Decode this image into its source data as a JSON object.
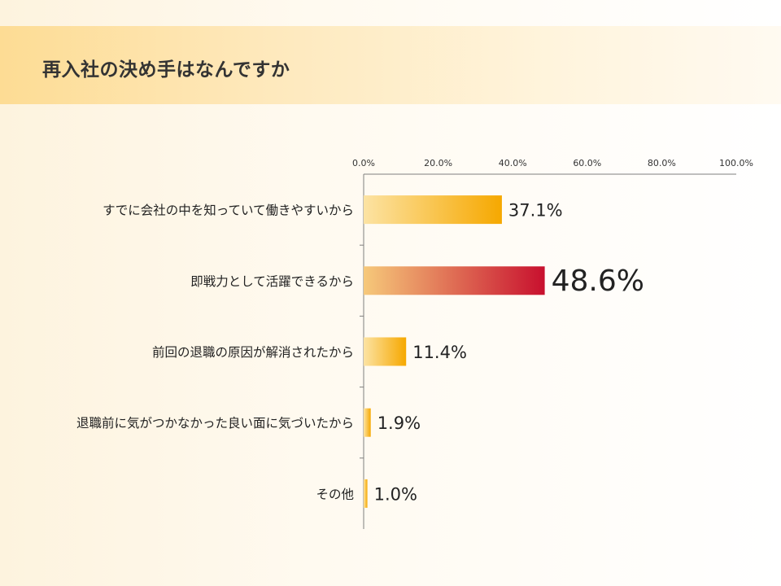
{
  "slide": {
    "title": "再入社の決め手はなんですか"
  },
  "chart_data": {
    "type": "bar",
    "orientation": "horizontal",
    "categories": [
      "すでに会社の中を知っていて働きやすいから",
      "即戦力として活躍できるから",
      "前回の退職の原因が解消されたから",
      "退職前に気がつかなかった良い面に気づいたから",
      "その他"
    ],
    "values": [
      37.1,
      48.6,
      11.4,
      1.9,
      1.0
    ],
    "value_labels": [
      "37.1%",
      "48.6%",
      "11.4%",
      "1.9%",
      "1.0%"
    ],
    "highlight_index": 1,
    "xlim": [
      0,
      100
    ],
    "x_ticks": [
      "0.0%",
      "20.0%",
      "40.0%",
      "60.0%",
      "80.0%",
      "100.0%"
    ],
    "axis_position": "top",
    "grid": false,
    "legend": "none",
    "colors": {
      "bar_start": "#fce3a3",
      "bar_end": "#f6a800",
      "highlight_start": "#f6c97a",
      "highlight_end": "#c8102e",
      "highlight_label": "#c8102e",
      "axis": "#7f7f7f"
    }
  }
}
